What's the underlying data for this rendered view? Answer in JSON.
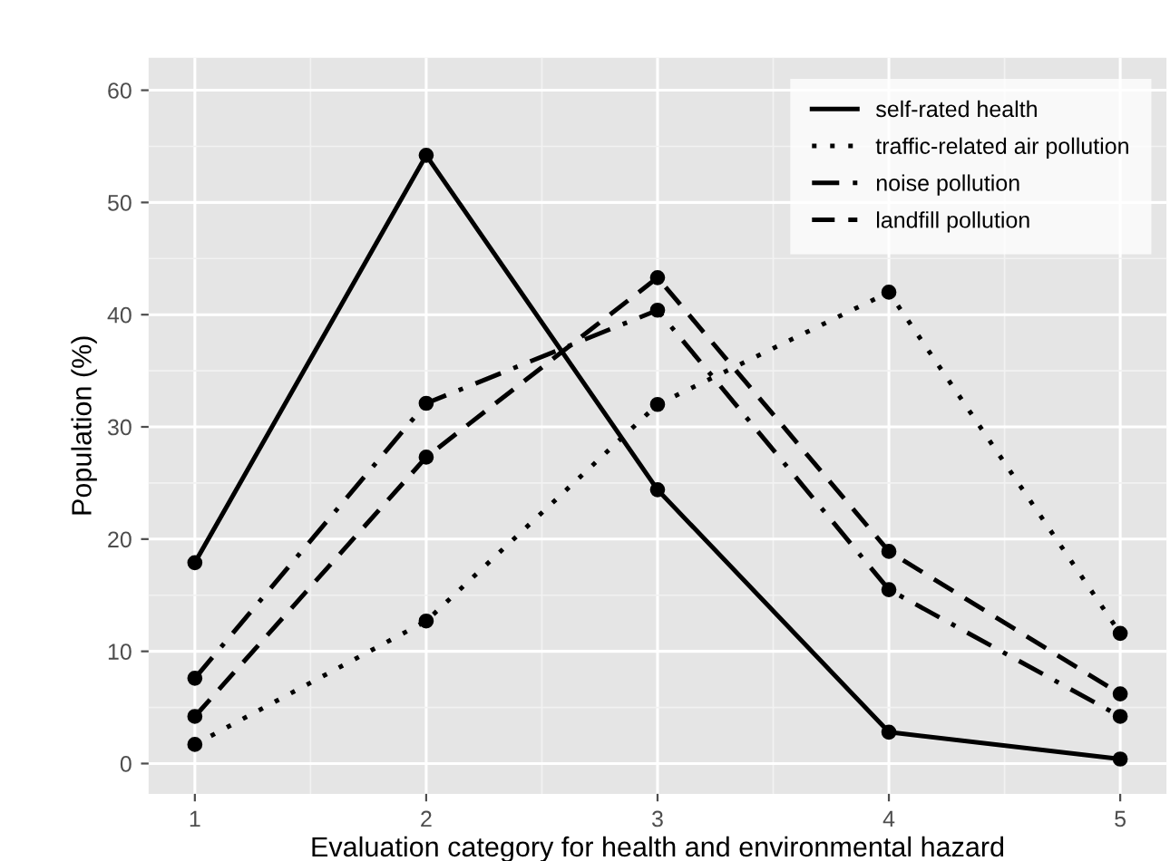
{
  "chart_data": {
    "type": "line",
    "xlabel": "Evaluation category for health and environmental hazard",
    "ylabel": "Population (%)",
    "x": [
      1,
      2,
      3,
      4,
      5
    ],
    "series": [
      {
        "name": "self-rated health",
        "color": "#000000",
        "line_style": "solid",
        "values": [
          17.9,
          54.2,
          24.4,
          2.8,
          0.4
        ]
      },
      {
        "name": "traffic-related air pollution",
        "color": "#000000",
        "line_style": "dotted",
        "values": [
          1.7,
          12.7,
          32.0,
          42.0,
          11.6
        ]
      },
      {
        "name": "noise pollution",
        "color": "#000000",
        "line_style": "dashdot",
        "values": [
          7.6,
          32.1,
          40.4,
          15.5,
          4.2
        ]
      },
      {
        "name": "landfill pollution",
        "color": "#000000",
        "line_style": "dashed",
        "values": [
          4.2,
          27.3,
          43.3,
          18.9,
          6.2
        ]
      }
    ],
    "xlim": [
      0.8,
      5.2
    ],
    "xticks": [
      1,
      2,
      3,
      4,
      5
    ],
    "ylim": [
      -2.7,
      62.9
    ],
    "yticks": [
      0,
      10,
      20,
      30,
      40,
      50,
      60
    ],
    "grid": true,
    "legend": "top right",
    "marker": "circle"
  }
}
